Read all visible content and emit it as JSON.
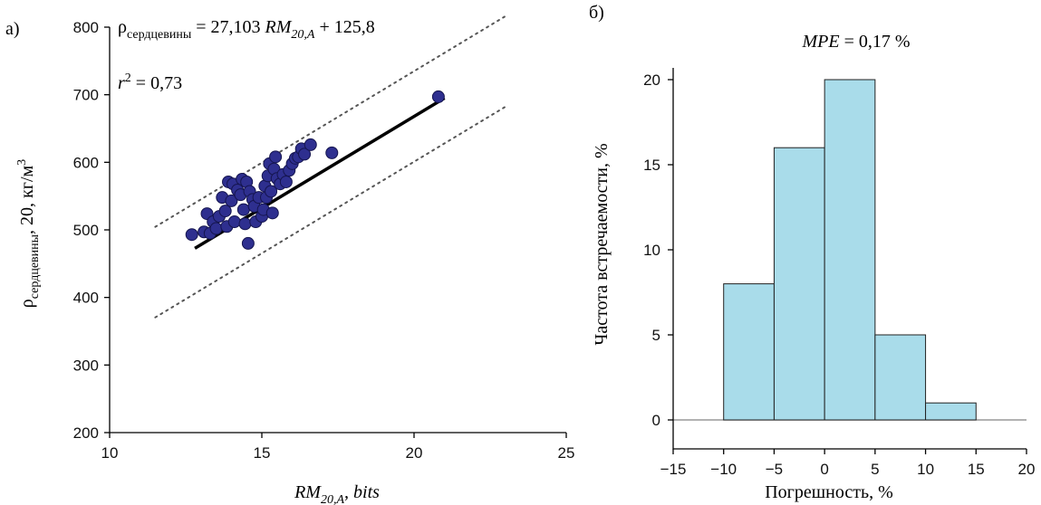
{
  "chart_data": [
    {
      "type": "scatter",
      "panel_label": "а)",
      "equation": {
        "lhs_symbol": "ρ",
        "lhs_sub": "сердцевины",
        "rhs_main": " = 27,103 ",
        "rhs_var": "RM",
        "rhs_sub": "20,A",
        "rhs_tail": " + 125,8"
      },
      "r2": {
        "symbol": "r",
        "sup": "2",
        "value": " = 0,73"
      },
      "xlabel": {
        "main": "RM",
        "sub": "20,A",
        "tail": ", bits"
      },
      "ylabel": {
        "symbol": "ρ",
        "sub": "сердцевины",
        "mid": ", 20",
        "unit": ", кг/м",
        "sup": "3"
      },
      "xlim": [
        10,
        25
      ],
      "ylim": [
        200,
        800
      ],
      "xticks": [
        "10",
        "15",
        "20",
        "25"
      ],
      "yticks": [
        "200",
        "300",
        "400",
        "500",
        "600",
        "700",
        "800"
      ],
      "fit": {
        "slope": 27.103,
        "intercept": 125.8,
        "x_range": [
          12.8,
          21.0
        ]
      },
      "prediction_band": {
        "offset": 67,
        "x_range": [
          11.5,
          23.0
        ]
      },
      "points": [
        [
          12.7,
          493
        ],
        [
          13.1,
          497
        ],
        [
          13.2,
          524
        ],
        [
          13.3,
          495
        ],
        [
          13.4,
          512
        ],
        [
          13.5,
          502
        ],
        [
          13.6,
          520
        ],
        [
          13.7,
          548
        ],
        [
          13.8,
          528
        ],
        [
          13.85,
          505
        ],
        [
          13.9,
          571
        ],
        [
          14.0,
          543
        ],
        [
          14.05,
          568
        ],
        [
          14.1,
          512
        ],
        [
          14.2,
          559
        ],
        [
          14.3,
          552
        ],
        [
          14.35,
          575
        ],
        [
          14.4,
          530
        ],
        [
          14.45,
          509
        ],
        [
          14.5,
          571
        ],
        [
          14.55,
          480
        ],
        [
          14.6,
          557
        ],
        [
          14.7,
          545
        ],
        [
          14.75,
          535
        ],
        [
          14.8,
          512
        ],
        [
          14.9,
          548
        ],
        [
          15.0,
          520
        ],
        [
          15.05,
          530
        ],
        [
          15.1,
          565
        ],
        [
          15.15,
          548
        ],
        [
          15.2,
          580
        ],
        [
          15.25,
          598
        ],
        [
          15.3,
          557
        ],
        [
          15.35,
          525
        ],
        [
          15.4,
          590
        ],
        [
          15.45,
          608
        ],
        [
          15.5,
          576
        ],
        [
          15.6,
          568
        ],
        [
          15.7,
          582
        ],
        [
          15.8,
          571
        ],
        [
          15.9,
          588
        ],
        [
          16.0,
          598
        ],
        [
          16.1,
          606
        ],
        [
          16.2,
          608
        ],
        [
          16.3,
          620
        ],
        [
          16.4,
          612
        ],
        [
          16.6,
          626
        ],
        [
          17.3,
          614
        ],
        [
          20.8,
          697
        ]
      ]
    },
    {
      "type": "bar",
      "panel_label": "б)",
      "title": {
        "var": "MPE",
        "value": " = 0,17 %"
      },
      "xlabel": "Погрешность, %",
      "ylabel": "Частота встречаемости, %",
      "xlim": [
        -15,
        20
      ],
      "ylim": [
        0,
        20
      ],
      "xticks": [
        "−15",
        "−10",
        "−5",
        "0",
        "5",
        "10",
        "15",
        "20"
      ],
      "yticks": [
        "0",
        "5",
        "10",
        "15",
        "20"
      ],
      "bins": [
        {
          "from": -10,
          "to": -5,
          "value": 8
        },
        {
          "from": -5,
          "to": 0,
          "value": 16
        },
        {
          "from": 0,
          "to": 5,
          "value": 20
        },
        {
          "from": 5,
          "to": 10,
          "value": 5
        },
        {
          "from": 10,
          "to": 15,
          "value": 1
        }
      ]
    }
  ]
}
